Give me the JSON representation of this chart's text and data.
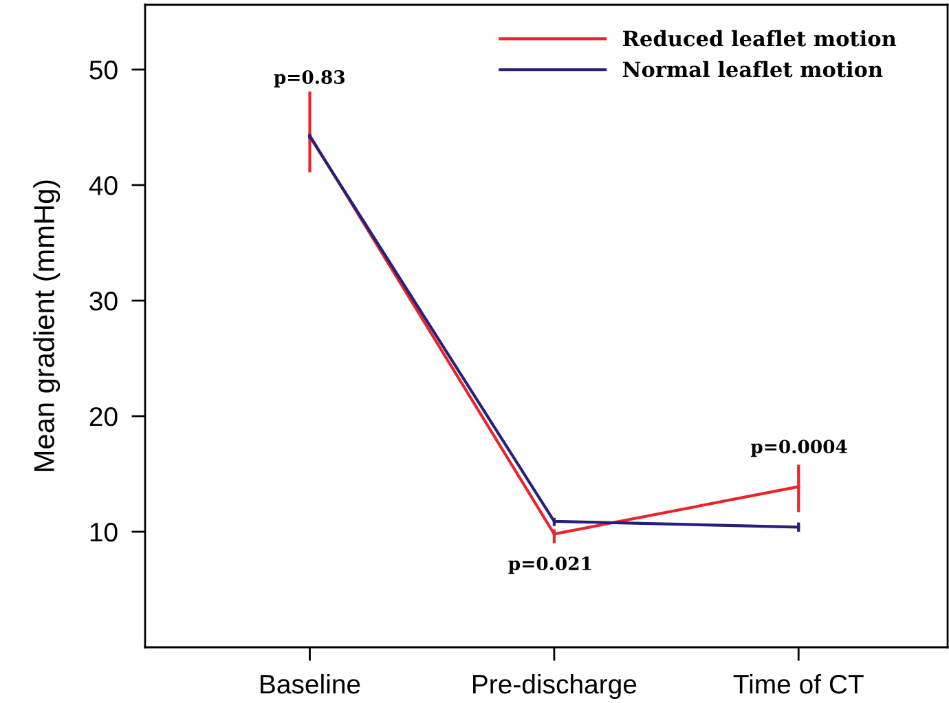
{
  "chart_data": {
    "type": "line",
    "ylabel": "Mean gradient (mmHg)",
    "categories": [
      "Baseline",
      "Pre-discharge",
      "Time of CT"
    ],
    "series": [
      {
        "name": "Reduced leaflet motion",
        "color": "#e8242c",
        "values": [
          44.3,
          9.8,
          13.9
        ],
        "errors": [
          [
            41.1,
            48.1
          ],
          [
            9.0,
            10.2
          ],
          [
            11.7,
            15.8
          ]
        ]
      },
      {
        "name": "Normal leaflet motion",
        "color": "#25207a",
        "values": [
          44.2,
          10.9,
          10.4
        ],
        "errors": [
          [
            44.0,
            44.4
          ],
          [
            10.5,
            11.2
          ],
          [
            10.0,
            10.8
          ]
        ]
      }
    ],
    "ylim": [
      0,
      55.6
    ],
    "yticks": [
      10,
      20,
      30,
      40,
      50
    ],
    "annotations": [
      "p=0.83",
      "p=0.021",
      "p=0.0004"
    ],
    "legend": "top right",
    "marker": "none",
    "line_style": "solid",
    "grid": false
  }
}
